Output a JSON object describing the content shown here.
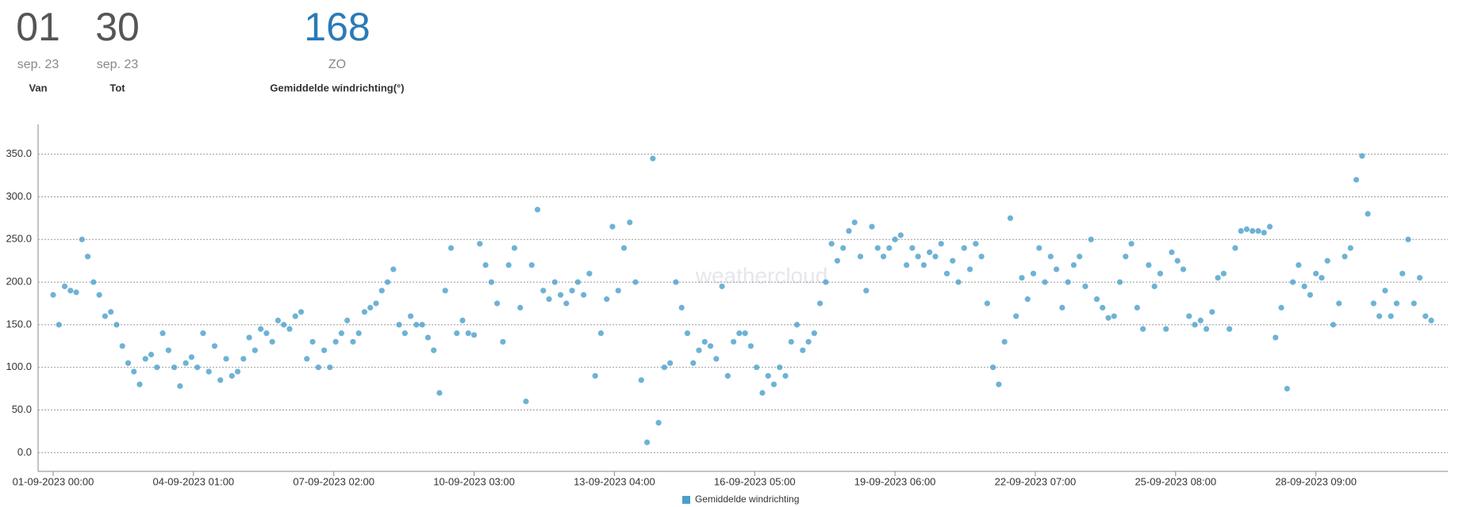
{
  "stats": [
    {
      "value": "01",
      "date": "sep. 23",
      "label": "Van"
    },
    {
      "value": "30",
      "date": "sep. 23",
      "label": "Tot"
    },
    {
      "value": 168,
      "date": "ZO",
      "label": "Gemiddelde windrichting(°)"
    }
  ],
  "chart_data": {
    "type": "scatter",
    "watermark": "weathercloud",
    "legend": "bottom",
    "grid": true,
    "ylim": [
      -22,
      385
    ],
    "yticks": [
      {
        "value": 0,
        "label": "0.0"
      },
      {
        "value": 50,
        "label": "50.0"
      },
      {
        "value": 100,
        "label": "100.0"
      },
      {
        "value": 150,
        "label": "150.0"
      },
      {
        "value": 200,
        "label": "200.0"
      },
      {
        "value": 250,
        "label": "250.0"
      },
      {
        "value": 300,
        "label": "300.0"
      },
      {
        "value": 350,
        "label": "350.0"
      }
    ],
    "xlim": [
      "01-09-2023 00:00",
      "30-09-2023 21:00"
    ],
    "xticks": [
      "01-09-2023 00:00",
      "04-09-2023 01:00",
      "07-09-2023 02:00",
      "10-09-2023 03:00",
      "13-09-2023 04:00",
      "16-09-2023 05:00",
      "19-09-2023 06:00",
      "22-09-2023 07:00",
      "25-09-2023 08:00",
      "28-09-2023 09:00"
    ],
    "x": [
      "01-09-2023 00:00",
      "01-09-2023 03:00",
      "01-09-2023 06:00",
      "01-09-2023 09:00",
      "01-09-2023 12:00",
      "01-09-2023 15:00",
      "01-09-2023 18:00",
      "01-09-2023 21:00",
      "02-09-2023 00:00",
      "02-09-2023 03:00",
      "02-09-2023 06:00",
      "02-09-2023 09:00",
      "02-09-2023 12:00",
      "02-09-2023 15:00",
      "02-09-2023 18:00",
      "02-09-2023 21:00",
      "03-09-2023 00:00",
      "03-09-2023 03:00",
      "03-09-2023 06:00",
      "03-09-2023 09:00",
      "03-09-2023 12:00",
      "03-09-2023 15:00",
      "03-09-2023 18:00",
      "03-09-2023 21:00",
      "04-09-2023 00:00",
      "04-09-2023 03:00",
      "04-09-2023 06:00",
      "04-09-2023 09:00",
      "04-09-2023 12:00",
      "04-09-2023 15:00",
      "04-09-2023 18:00",
      "04-09-2023 21:00",
      "05-09-2023 00:00",
      "05-09-2023 03:00",
      "05-09-2023 06:00",
      "05-09-2023 09:00",
      "05-09-2023 12:00",
      "05-09-2023 15:00",
      "05-09-2023 18:00",
      "05-09-2023 21:00",
      "06-09-2023 00:00",
      "06-09-2023 03:00",
      "06-09-2023 06:00",
      "06-09-2023 09:00",
      "06-09-2023 12:00",
      "06-09-2023 15:00",
      "06-09-2023 18:00",
      "06-09-2023 21:00",
      "07-09-2023 00:00",
      "07-09-2023 03:00",
      "07-09-2023 06:00",
      "07-09-2023 09:00",
      "07-09-2023 12:00",
      "07-09-2023 15:00",
      "07-09-2023 18:00",
      "07-09-2023 21:00",
      "08-09-2023 00:00",
      "08-09-2023 03:00",
      "08-09-2023 06:00",
      "08-09-2023 09:00",
      "08-09-2023 12:00",
      "08-09-2023 15:00",
      "08-09-2023 18:00",
      "08-09-2023 21:00",
      "09-09-2023 00:00",
      "09-09-2023 03:00",
      "09-09-2023 06:00",
      "09-09-2023 09:00",
      "09-09-2023 12:00",
      "09-09-2023 15:00",
      "09-09-2023 18:00",
      "09-09-2023 21:00",
      "10-09-2023 00:00",
      "10-09-2023 03:00",
      "10-09-2023 06:00",
      "10-09-2023 09:00",
      "10-09-2023 12:00",
      "10-09-2023 15:00",
      "10-09-2023 18:00",
      "10-09-2023 21:00",
      "11-09-2023 00:00",
      "11-09-2023 03:00",
      "11-09-2023 06:00",
      "11-09-2023 09:00",
      "11-09-2023 12:00",
      "11-09-2023 15:00",
      "11-09-2023 18:00",
      "11-09-2023 21:00",
      "12-09-2023 00:00",
      "12-09-2023 03:00",
      "12-09-2023 06:00",
      "12-09-2023 09:00",
      "12-09-2023 12:00",
      "12-09-2023 15:00",
      "12-09-2023 18:00",
      "12-09-2023 21:00",
      "13-09-2023 00:00",
      "13-09-2023 03:00",
      "13-09-2023 06:00",
      "13-09-2023 09:00",
      "13-09-2023 12:00",
      "13-09-2023 15:00",
      "13-09-2023 18:00",
      "13-09-2023 21:00",
      "14-09-2023 00:00",
      "14-09-2023 03:00",
      "14-09-2023 06:00",
      "14-09-2023 09:00",
      "14-09-2023 12:00",
      "14-09-2023 15:00",
      "14-09-2023 18:00",
      "14-09-2023 21:00",
      "15-09-2023 00:00",
      "15-09-2023 03:00",
      "15-09-2023 06:00",
      "15-09-2023 09:00",
      "15-09-2023 12:00",
      "15-09-2023 15:00",
      "15-09-2023 18:00",
      "15-09-2023 21:00",
      "16-09-2023 00:00",
      "16-09-2023 03:00",
      "16-09-2023 06:00",
      "16-09-2023 09:00",
      "16-09-2023 12:00",
      "16-09-2023 15:00",
      "16-09-2023 18:00",
      "16-09-2023 21:00",
      "17-09-2023 00:00",
      "17-09-2023 03:00",
      "17-09-2023 06:00",
      "17-09-2023 09:00",
      "17-09-2023 12:00",
      "17-09-2023 15:00",
      "17-09-2023 18:00",
      "17-09-2023 21:00",
      "18-09-2023 00:00",
      "18-09-2023 03:00",
      "18-09-2023 06:00",
      "18-09-2023 09:00",
      "18-09-2023 12:00",
      "18-09-2023 15:00",
      "18-09-2023 18:00",
      "18-09-2023 21:00",
      "19-09-2023 00:00",
      "19-09-2023 03:00",
      "19-09-2023 06:00",
      "19-09-2023 09:00",
      "19-09-2023 12:00",
      "19-09-2023 15:00",
      "19-09-2023 18:00",
      "19-09-2023 21:00",
      "20-09-2023 00:00",
      "20-09-2023 03:00",
      "20-09-2023 06:00",
      "20-09-2023 09:00",
      "20-09-2023 12:00",
      "20-09-2023 15:00",
      "20-09-2023 18:00",
      "20-09-2023 21:00",
      "21-09-2023 00:00",
      "21-09-2023 03:00",
      "21-09-2023 06:00",
      "21-09-2023 09:00",
      "21-09-2023 12:00",
      "21-09-2023 15:00",
      "21-09-2023 18:00",
      "21-09-2023 21:00",
      "22-09-2023 00:00",
      "22-09-2023 03:00",
      "22-09-2023 06:00",
      "22-09-2023 09:00",
      "22-09-2023 12:00",
      "22-09-2023 15:00",
      "22-09-2023 18:00",
      "22-09-2023 21:00",
      "23-09-2023 00:00",
      "23-09-2023 03:00",
      "23-09-2023 06:00",
      "23-09-2023 09:00",
      "23-09-2023 12:00",
      "23-09-2023 15:00",
      "23-09-2023 18:00",
      "23-09-2023 21:00",
      "24-09-2023 00:00",
      "24-09-2023 03:00",
      "24-09-2023 06:00",
      "24-09-2023 09:00",
      "24-09-2023 12:00",
      "24-09-2023 15:00",
      "24-09-2023 18:00",
      "24-09-2023 21:00",
      "25-09-2023 00:00",
      "25-09-2023 03:00",
      "25-09-2023 06:00",
      "25-09-2023 09:00",
      "25-09-2023 12:00",
      "25-09-2023 15:00",
      "25-09-2023 18:00",
      "25-09-2023 21:00",
      "26-09-2023 00:00",
      "26-09-2023 03:00",
      "26-09-2023 06:00",
      "26-09-2023 09:00",
      "26-09-2023 12:00",
      "26-09-2023 15:00",
      "26-09-2023 18:00",
      "26-09-2023 21:00",
      "27-09-2023 00:00",
      "27-09-2023 03:00",
      "27-09-2023 06:00",
      "27-09-2023 09:00",
      "27-09-2023 12:00",
      "27-09-2023 15:00",
      "27-09-2023 18:00",
      "27-09-2023 21:00",
      "28-09-2023 00:00",
      "28-09-2023 03:00",
      "28-09-2023 06:00",
      "28-09-2023 09:00",
      "28-09-2023 12:00",
      "28-09-2023 15:00",
      "28-09-2023 18:00",
      "28-09-2023 21:00",
      "29-09-2023 00:00",
      "29-09-2023 03:00",
      "29-09-2023 06:00",
      "29-09-2023 09:00",
      "29-09-2023 12:00",
      "29-09-2023 15:00",
      "29-09-2023 18:00",
      "29-09-2023 21:00",
      "30-09-2023 00:00",
      "30-09-2023 03:00",
      "30-09-2023 06:00",
      "30-09-2023 09:00",
      "30-09-2023 12:00",
      "30-09-2023 15:00",
      "30-09-2023 18:00",
      "30-09-2023 21:00"
    ],
    "series": [
      {
        "name": "Gemiddelde windrichting",
        "color": "#4a9fcb",
        "values": [
          185,
          150,
          195,
          190,
          188,
          250,
          230,
          200,
          185,
          160,
          165,
          150,
          125,
          105,
          95,
          80,
          110,
          115,
          100,
          140,
          120,
          100,
          78,
          105,
          112,
          100,
          140,
          95,
          125,
          85,
          110,
          90,
          95,
          110,
          135,
          120,
          145,
          140,
          130,
          155,
          150,
          145,
          160,
          165,
          110,
          130,
          100,
          120,
          100,
          130,
          140,
          155,
          130,
          140,
          165,
          170,
          175,
          190,
          200,
          215,
          150,
          140,
          160,
          150,
          150,
          135,
          120,
          70,
          190,
          240,
          140,
          155,
          140,
          138,
          245,
          220,
          200,
          175,
          130,
          220,
          240,
          170,
          60,
          220,
          285,
          190,
          180,
          200,
          185,
          175,
          190,
          200,
          185,
          210,
          90,
          140,
          180,
          265,
          190,
          240,
          270,
          200,
          85,
          12,
          345,
          35,
          100,
          105,
          200,
          170,
          140,
          105,
          120,
          130,
          125,
          110,
          195,
          90,
          130,
          140,
          140,
          125,
          100,
          70,
          90,
          80,
          100,
          90,
          130,
          150,
          120,
          130,
          140,
          175,
          200,
          245,
          225,
          240,
          260,
          270,
          230,
          190,
          265,
          240,
          230,
          240,
          250,
          255,
          220,
          240,
          230,
          220,
          235,
          230,
          245,
          210,
          225,
          200,
          240,
          215,
          245,
          230,
          175,
          100,
          80,
          130,
          275,
          160,
          205,
          180,
          210,
          240,
          200,
          230,
          215,
          170,
          200,
          220,
          230,
          195,
          250,
          180,
          170,
          158,
          160,
          200,
          230,
          245,
          170,
          145,
          220,
          195,
          210,
          145,
          235,
          225,
          215,
          160,
          150,
          155,
          145,
          165,
          205,
          210,
          145,
          240,
          260,
          262,
          260,
          260,
          258,
          265,
          135,
          170,
          75,
          200,
          220,
          195,
          185,
          210,
          205,
          225,
          150,
          175,
          230,
          240,
          320,
          348,
          280,
          175,
          160,
          190,
          160,
          175,
          210,
          250,
          175,
          205,
          160,
          155
        ]
      }
    ]
  }
}
